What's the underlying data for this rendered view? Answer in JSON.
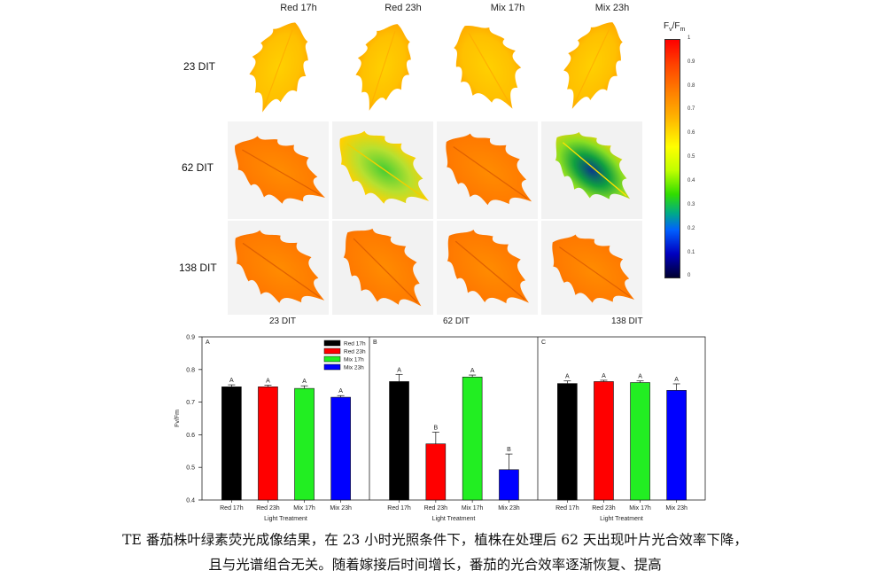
{
  "figure": {
    "columns": [
      "Red 17h",
      "Red 23h",
      "Mix 17h",
      "Mix 23h"
    ],
    "rows": [
      "23 DIT",
      "62 DIT",
      "138 DIT"
    ],
    "bottom_labels": [
      "23 DIT",
      "62 DIT",
      "138 DIT"
    ],
    "colorbar": {
      "label_main": "F",
      "label_sub1": "v",
      "label_sep": "/F",
      "label_sub2": "m",
      "ticks": [
        "1",
        "0.9",
        "0.8",
        "0.7",
        "0.6",
        "0.5",
        "0.4",
        "0.3",
        "0.2",
        "0.1",
        "0"
      ]
    }
  },
  "chart_data": {
    "type": "bar",
    "ylabel": "Fv/Fm",
    "xlabel": "Light Treatment",
    "ylim": [
      0.4,
      0.9
    ],
    "yticks": [
      "0.4",
      "0.5",
      "0.6",
      "0.7",
      "0.8",
      "0.9"
    ],
    "categories": [
      "Red 17h",
      "Red 23h",
      "Mix 17h",
      "Mix 23h"
    ],
    "colors": [
      "#000000",
      "#ff0000",
      "#22ee22",
      "#0000ff"
    ],
    "legend": [
      "Red 17h",
      "Red 23h",
      "Mix 17h",
      "Mix 23h"
    ],
    "panels": [
      {
        "label": "A",
        "values": [
          0.747,
          0.747,
          0.742,
          0.715
        ],
        "errors": [
          0.006,
          0.005,
          0.008,
          0.005
        ],
        "letters": [
          "A",
          "A",
          "A",
          "A"
        ]
      },
      {
        "label": "B",
        "values": [
          0.763,
          0.572,
          0.777,
          0.493
        ],
        "errors": [
          0.022,
          0.036,
          0.006,
          0.048
        ],
        "letters": [
          "A",
          "B",
          "A",
          "B"
        ]
      },
      {
        "label": "C",
        "values": [
          0.757,
          0.763,
          0.76,
          0.736
        ],
        "errors": [
          0.008,
          0.004,
          0.005,
          0.02
        ],
        "letters": [
          "A",
          "A",
          "A",
          "A"
        ]
      }
    ]
  },
  "caption": {
    "line1": "TE 番茄株叶绿素荧光成像结果，在 23 小时光照条件下，植株在处理后 62 天出现叶片光合效率下降，",
    "line2": "且与光谱组合无关。随着嫁接后时间增长，番茄的光合效率逐渐恢复、提高"
  }
}
